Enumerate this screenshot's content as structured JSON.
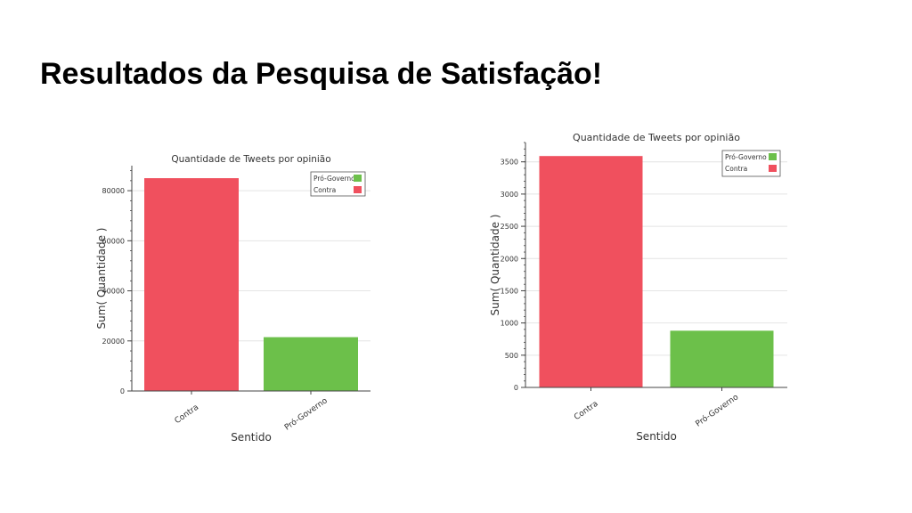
{
  "slide": {
    "title": "Resultados da Pesquisa de Satisfação!"
  },
  "chart_data": [
    {
      "type": "bar",
      "title": "Quantidade de Tweets por opinião",
      "xlabel": "Sentido",
      "ylabel": "Sum( Quantidade )",
      "categories": [
        "Contra",
        "Pró-Governo"
      ],
      "values": [
        85000,
        21500
      ],
      "colors": [
        "#f0505e",
        "#6cc04a"
      ],
      "ylim": [
        0,
        90000
      ],
      "yticks": [
        0,
        20000,
        40000,
        60000,
        80000
      ],
      "grid": true,
      "legend": {
        "position": "top-right",
        "entries": [
          "Pró-Governo",
          "Contra"
        ],
        "colors": [
          "#6cc04a",
          "#f0505e"
        ]
      }
    },
    {
      "type": "bar",
      "title": "Quantidade de Tweets por opinião",
      "xlabel": "Sentido",
      "ylabel": "Sum( Quantidade )",
      "categories": [
        "Contra",
        "Pró-Governo"
      ],
      "values": [
        3590,
        880
      ],
      "colors": [
        "#f0505e",
        "#6cc04a"
      ],
      "ylim": [
        0,
        3800
      ],
      "yticks": [
        0,
        500,
        1000,
        1500,
        2000,
        2500,
        3000,
        3500
      ],
      "grid": true,
      "legend": {
        "position": "top-right",
        "entries": [
          "Pró-Governo",
          "Contra"
        ],
        "colors": [
          "#6cc04a",
          "#f0505e"
        ]
      }
    }
  ]
}
